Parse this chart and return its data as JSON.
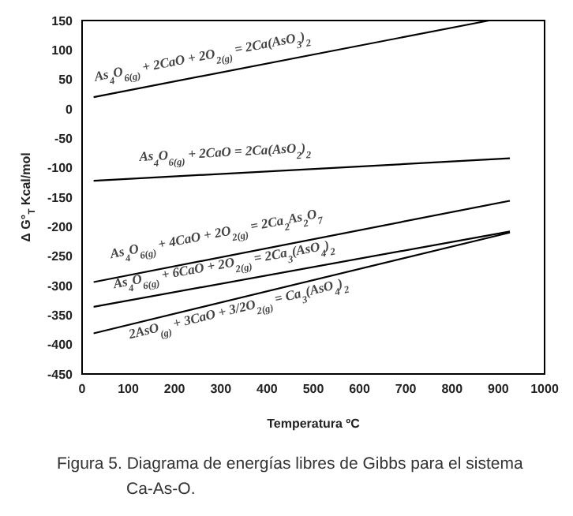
{
  "chart_data": {
    "type": "line",
    "xlabel": "Temperatura ºC",
    "ylabel": "Δ G°$_{T}$  Kcal/mol",
    "series": [
      {
        "color": "#000000",
        "x": [
          25,
          880
        ],
        "values": [
          20,
          150
        ]
      },
      {
        "color": "#000000",
        "x": [
          25,
          925
        ],
        "values": [
          -122,
          -84
        ]
      },
      {
        "color": "#000000",
        "x": [
          25,
          925
        ],
        "values": [
          -294,
          -156
        ]
      },
      {
        "color": "#000000",
        "x": [
          25,
          925
        ],
        "values": [
          -336,
          -208
        ]
      },
      {
        "color": "#000000",
        "x": [
          25,
          925
        ],
        "values": [
          -381,
          -210
        ]
      }
    ],
    "annotations": [
      "As$_{4}$O$_{6(g)}$ + 2CaO + 2O$_{2(g)}$ = 2Ca(AsO$_{3}$)$_{2}$",
      "As$_{4}$O$_{6(g)}$ + 2CaO = 2Ca(AsO$_{2}$)$_{2}$",
      "As$_{4}$O$_{6(g)}$ + 4CaO + 2O$_{2(g)}$ = 2Ca$_{2}$As$_{2}$O$_{7}$",
      "As$_{4}$O$_{6(g)}$ + 6CaO + 2O$_{2(g)}$ = 2Ca$_{3}$(AsO$_{4}$)$_{2}$",
      "2AsO$_{(g)}$ + 3CaO + 3/2O$_{2(g)}$ = Ca$_{3}$(AsO$_{4}$)$_{2}$",
      "Figura 5. Diagrama de energías libres de Gibbs para el sistema Ca-As-O."
    ],
    "xlim": [
      0,
      1000
    ],
    "xticks": [
      0,
      100,
      200,
      300,
      400,
      500,
      600,
      700,
      800,
      900,
      1000
    ],
    "ylim": [
      -450,
      150
    ],
    "yticks": [
      -450,
      -400,
      -350,
      -300,
      -250,
      -200,
      -150,
      -100,
      -50,
      0,
      50,
      100,
      150
    ],
    "grid": false,
    "marker": "none",
    "line_style": "solid"
  }
}
